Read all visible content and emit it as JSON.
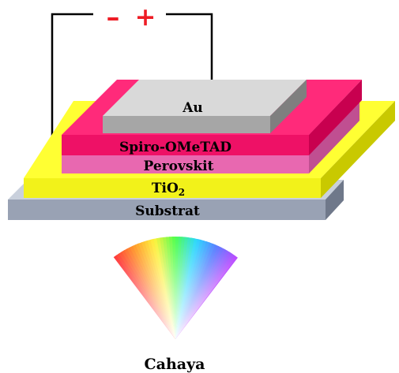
{
  "circuit": {
    "minus_sign": "–",
    "plus_sign": "+",
    "sign_color": "#ee1c25"
  },
  "layers": {
    "au": {
      "label": "Au",
      "top_color": "#d9d9d9",
      "front_color": "#a6a6a6",
      "side_color": "#7f7f7f"
    },
    "spiro": {
      "label": "Spiro-OMeTAD",
      "top_color": "#ff2a7a",
      "front_color": "#ee1166",
      "side_color": "#c8004f"
    },
    "perovskit": {
      "label": "Perovskit",
      "top_color": "#f78cc6",
      "front_color": "#e868b0",
      "side_color": "#c04f91"
    },
    "tio2": {
      "label_main": "TiO",
      "label_sub": "2",
      "top_color": "#ffff33",
      "front_color": "#f2f21a",
      "side_color": "#c9c900"
    },
    "substrat": {
      "label": "Substrat",
      "top_color": "#c9d0dc",
      "front_color": "#99a2b4",
      "side_color": "#6f788a"
    }
  },
  "light": {
    "label": "Cahaya",
    "spectrum_colors": [
      "#ff3a3a",
      "#ff9a2a",
      "#fff23a",
      "#4cff4c",
      "#2ad7ff",
      "#5a7dff",
      "#b84cff"
    ]
  }
}
